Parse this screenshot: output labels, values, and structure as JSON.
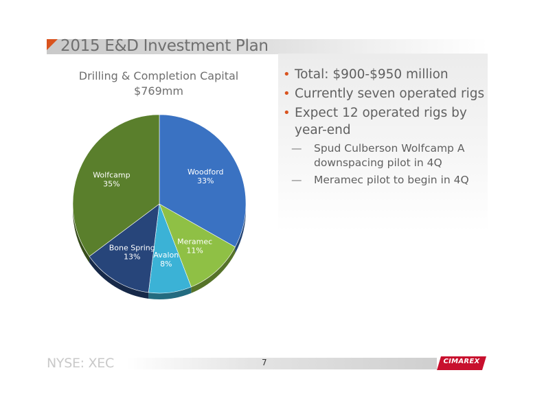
{
  "slide": {
    "title": "2015 E&D Investment Plan",
    "footer_ticker": "NYSE: XEC",
    "page_number": "7",
    "logo_text": "CIMAREX",
    "accent_color": "#d9531e"
  },
  "bullets": [
    {
      "text": "Total: $900-$950 million",
      "level": 1
    },
    {
      "text": "Currently seven operated rigs",
      "level": 1
    },
    {
      "text": "Expect 12 operated rigs by year-end",
      "level": 1
    },
    {
      "text": "Spud Culberson Wolfcamp A downspacing pilot in 4Q",
      "level": 2
    },
    {
      "text": "Meramec pilot to begin in 4Q",
      "level": 2
    }
  ],
  "chart_data": {
    "type": "pie",
    "title": "Drilling & Completion Capital",
    "subtitle": "$769mm",
    "slices": [
      {
        "label": "Woodford",
        "value": 33,
        "display": "33%",
        "color": "#3a72c2"
      },
      {
        "label": "Meramec",
        "value": 11,
        "display": "11%",
        "color": "#8fc045"
      },
      {
        "label": "Avalon",
        "value": 8,
        "display": "8%",
        "color": "#3bb2d6"
      },
      {
        "label": "Bone Spring",
        "value": 13,
        "display": "13%",
        "color": "#27457a"
      },
      {
        "label": "Wolfcamp",
        "value": 35,
        "display": "35%",
        "color": "#5a7f2c"
      }
    ]
  }
}
